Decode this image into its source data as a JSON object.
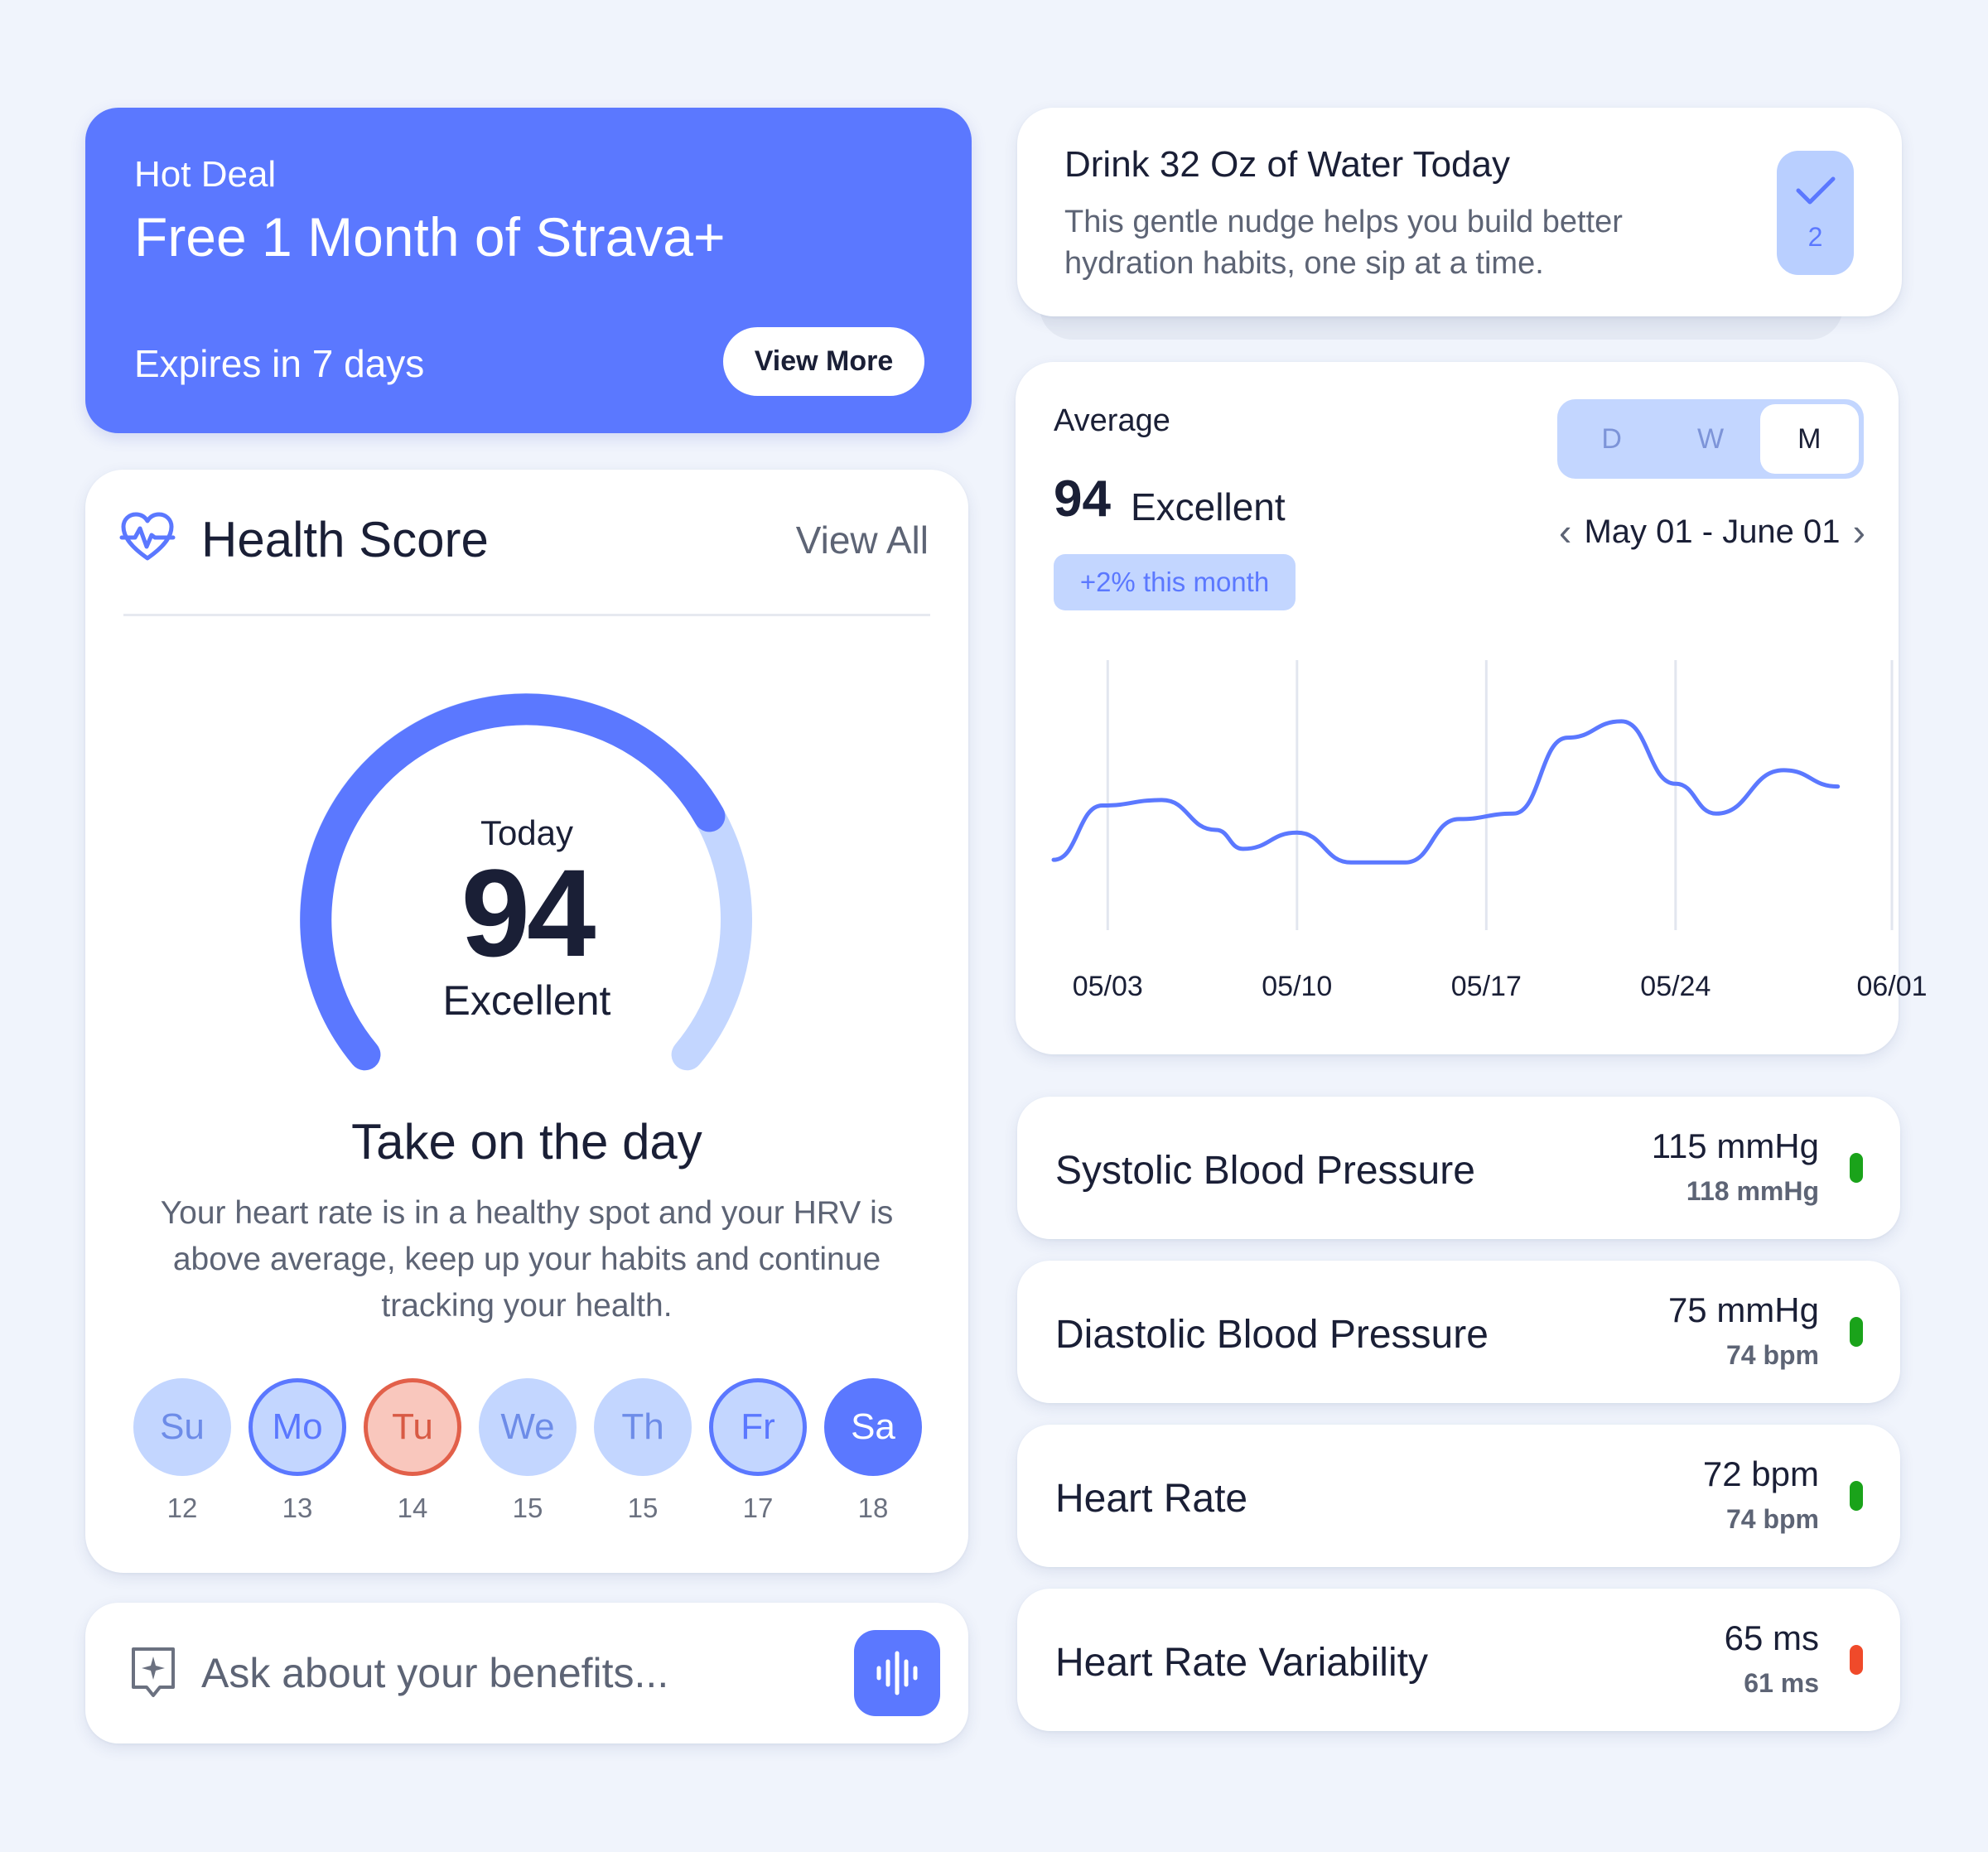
{
  "promo": {
    "eyebrow": "Hot Deal",
    "title": "Free 1 Month of Strava+",
    "expires": "Expires in 7 days",
    "button": "View More"
  },
  "health": {
    "title": "Health Score",
    "view_all": "View All",
    "gauge": {
      "today_label": "Today",
      "value": "94",
      "label": "Excellent",
      "max": 100,
      "score": 94
    },
    "headline": "Take on the day",
    "message": "Your heart rate is in a healthy spot and your HRV is above average, keep up your habits and continue tracking your health.",
    "days": [
      {
        "label": "Su",
        "date": "12",
        "state": "plain"
      },
      {
        "label": "Mo",
        "date": "13",
        "state": "ring"
      },
      {
        "label": "Tu",
        "date": "14",
        "state": "red"
      },
      {
        "label": "We",
        "date": "15",
        "state": "plain"
      },
      {
        "label": "Th",
        "date": "15",
        "state": "plain"
      },
      {
        "label": "Fr",
        "date": "17",
        "state": "ring"
      },
      {
        "label": "Sa",
        "date": "18",
        "state": "filled"
      }
    ]
  },
  "ask": {
    "placeholder": "Ask about your benefits..."
  },
  "water": {
    "title": "Drink 32 Oz of Water Today",
    "description": "This gentle nudge helps you build better hydration habits, one sip at a time.",
    "count": "2"
  },
  "average": {
    "label": "Average",
    "score": "94",
    "score_label": "Excellent",
    "badge": "+2% this month",
    "segments": [
      "D",
      "W",
      "M"
    ],
    "active_segment": "M",
    "range": "May 01 - June 01",
    "prev_icon": "chevron-left-icon",
    "next_icon": "chevron-right-icon"
  },
  "chart_data": {
    "type": "line",
    "title": "",
    "xlabel": "",
    "ylabel": "",
    "x_ticks": [
      "05/03",
      "05/10",
      "05/17",
      "05/24",
      "06/01"
    ],
    "series": [
      {
        "values": [
          {
            "x": 1.0,
            "y": 90.5
          },
          {
            "x": 2.8,
            "y": 92.5
          },
          {
            "x": 5.0,
            "y": 92.7
          },
          {
            "x": 7.0,
            "y": 91.6
          },
          {
            "x": 8.0,
            "y": 90.9
          },
          {
            "x": 10.0,
            "y": 91.5
          },
          {
            "x": 12.0,
            "y": 90.4
          },
          {
            "x": 14.0,
            "y": 90.4
          },
          {
            "x": 16.0,
            "y": 92.0
          },
          {
            "x": 18.0,
            "y": 92.2
          },
          {
            "x": 20.0,
            "y": 95.0
          },
          {
            "x": 22.0,
            "y": 95.6
          },
          {
            "x": 24.0,
            "y": 93.3
          },
          {
            "x": 25.5,
            "y": 92.2
          },
          {
            "x": 28.0,
            "y": 93.8
          },
          {
            "x": 30.0,
            "y": 93.2
          }
        ]
      }
    ],
    "xlim": [
      1,
      32
    ],
    "ylim": [
      88,
      97
    ],
    "grid": "vertical",
    "line_color": "#5b78ff"
  },
  "metrics": [
    {
      "name": "Systolic Blood Pressure",
      "value": "115 mmHg",
      "sub": "118 mmHg",
      "status_color": "#1aa31a"
    },
    {
      "name": "Diastolic Blood Pressure",
      "value": "75 mmHg",
      "sub": "74 bpm",
      "status_color": "#1aa31a"
    },
    {
      "name": "Heart Rate",
      "value": "72 bpm",
      "sub": "74 bpm",
      "status_color": "#1aa31a"
    },
    {
      "name": "Heart Rate Variability",
      "value": "65 ms",
      "sub": "61 ms",
      "status_color": "#f04a2a"
    }
  ],
  "colors": {
    "accent": "#5b78ff",
    "accent_light": "#c3d6ff",
    "background": "#f0f4fc"
  }
}
